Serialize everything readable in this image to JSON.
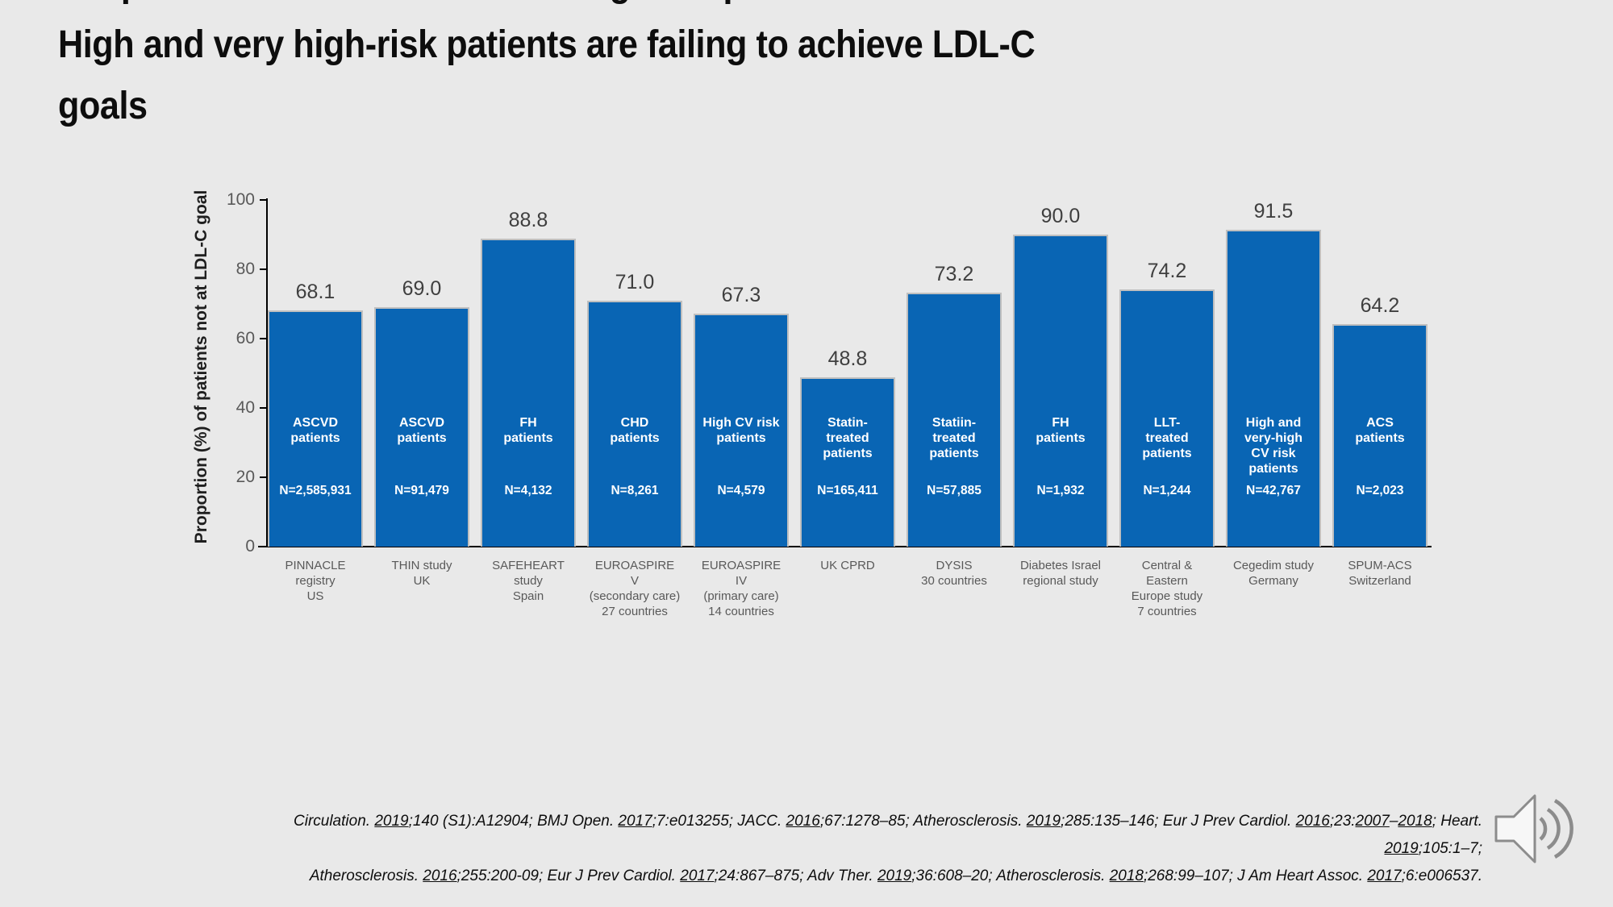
{
  "slide": {
    "title": "Despite efficacious LDL-C lowering therapies:\nHigh and very high-risk patients are failing to achieve LDL-C\ngoals",
    "background_color": "#e9e9e9"
  },
  "chart_data": {
    "type": "bar",
    "title": "",
    "xlabel": "",
    "ylabel": "Proportion (%) of patients not at LDL-C goal",
    "ylim": [
      0,
      100
    ],
    "ytick_labels": [
      "100",
      "80",
      "60",
      "40",
      "20",
      "0"
    ],
    "grid": false,
    "legend": false,
    "bar_color": "#0965B4",
    "bar_border_color": "#bfbfbf",
    "categories": [
      "PINNACLE\nregistry\nUS",
      "THIN study\nUK",
      "SAFEHEART\nstudy\nSpain",
      "EUROASPIRE\nV\n(secondary care)\n27 countries",
      "EUROASPIRE\nIV\n(primary care)\n14 countries",
      "UK CPRD",
      "DYSIS\n30 countries",
      "Diabetes Israel\nregional study",
      "Central &\nEastern\nEurope study\n7 countries",
      "Cegedim study\nGermany",
      "SPUM-ACS\nSwitzerland"
    ],
    "values": [
      68.1,
      69.0,
      88.8,
      71.0,
      67.3,
      48.8,
      73.2,
      90.0,
      74.2,
      91.5,
      64.2
    ],
    "value_labels": [
      "68.1",
      "69.0",
      "88.8",
      "71.0",
      "67.3",
      "48.8",
      "73.2",
      "90.0",
      "74.2",
      "91.5",
      "64.2"
    ],
    "group_labels": [
      "ASCVD\npatients",
      "ASCVD\npatients",
      "FH\npatients",
      "CHD\npatients",
      "High CV risk\npatients",
      "Statin-\ntreated\npatients",
      "Statiin-\ntreated\npatients",
      "FH\npatients",
      "LLT-\ntreated\npatients",
      "High and\nvery-high\nCV risk\npatients",
      "ACS\npatients"
    ],
    "n_labels": [
      "N=2,585,931",
      "N=91,479",
      "N=4,132",
      "N=8,261",
      "N=4,579",
      "N=165,411",
      "N=57,885",
      "N=1,932",
      "N=1,244",
      "N=42,767",
      "N=2,023"
    ]
  },
  "footer": {
    "citation_lines": [
      "Circulation. 2019;140 (S1):A12904; BMJ Open. 2017;7:e013255; JACC. 2016;67:1278–85; Atherosclerosis. 2019;285:135–146; Eur J Prev Cardiol. 2016;23:2007–2018; Heart.",
      "2019;105:1–7;",
      "Atherosclerosis. 2016;255:200-09;  Eur J Prev Cardiol. 2017;24:867–875; Adv Ther. 2019;36:608–20; Atherosclerosis. 2018;268:99–107; J Am Heart Assoc. 2017;6:e006537."
    ]
  },
  "icons": {
    "speaker": "audio-speaker"
  }
}
